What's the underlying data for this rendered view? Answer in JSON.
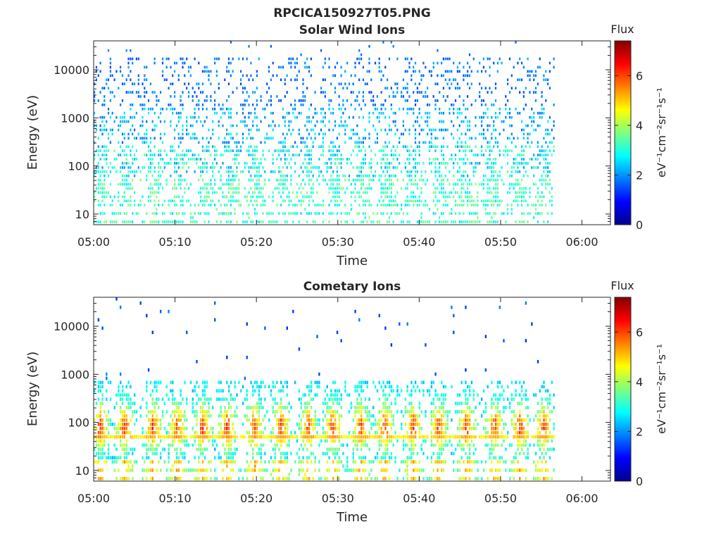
{
  "figure_title": "RPCICA150927T05.PNG",
  "chart_data": [
    {
      "type": "heatmap",
      "title": "Solar Wind Ions",
      "xlabel": "Time",
      "ylabel": "Energy (eV)",
      "x_ticks": [
        "05:00",
        "05:10",
        "05:20",
        "05:30",
        "05:40",
        "05:50",
        "06:00"
      ],
      "x_range_minutes": [
        0,
        63.5
      ],
      "data_end_minute": 56.7,
      "yscale": "log",
      "y_ticks": [
        10,
        100,
        1000,
        10000
      ],
      "ylim": [
        6,
        40000
      ],
      "colorbar": {
        "title": "Flux",
        "label": "eV⁻¹cm⁻²sr⁻¹s⁻¹",
        "ticks": [
          0,
          2,
          4,
          6
        ],
        "range": [
          0,
          7.4
        ],
        "colormap": "jet"
      },
      "pattern": "sparse flux ~1.5-3 across 100-20000 eV, denser cyan/green 2.5-4 below 300 eV"
    },
    {
      "type": "heatmap",
      "title": "Cometary Ions",
      "xlabel": "Time",
      "ylabel": "Energy (eV)",
      "x_ticks": [
        "05:00",
        "05:10",
        "05:20",
        "05:30",
        "05:40",
        "05:50",
        "06:00"
      ],
      "x_range_minutes": [
        0,
        63.5
      ],
      "data_end_minute": 56.7,
      "yscale": "log",
      "y_ticks": [
        10,
        100,
        1000,
        10000
      ],
      "ylim": [
        6,
        40000
      ],
      "colorbar": {
        "title": "Flux",
        "label": "eV⁻¹cm⁻²sr⁻¹s⁻¹",
        "ticks": [
          0,
          2,
          4,
          6
        ],
        "range": [
          0,
          7.4
        ],
        "colormap": "jet"
      },
      "burst_minutes": [
        0.7,
        3.7,
        7.2,
        10.2,
        13.3,
        16.3,
        19.7,
        22.9,
        26.3,
        29.3,
        32.7,
        35.7,
        39.2,
        42.3,
        45.7,
        49.2,
        52.3,
        55.2
      ],
      "pattern": "periodic bursts peaking ~4.5-6.5 flux near 40-100 eV, band at ~42 eV, sparse points up to 10000 eV"
    }
  ]
}
